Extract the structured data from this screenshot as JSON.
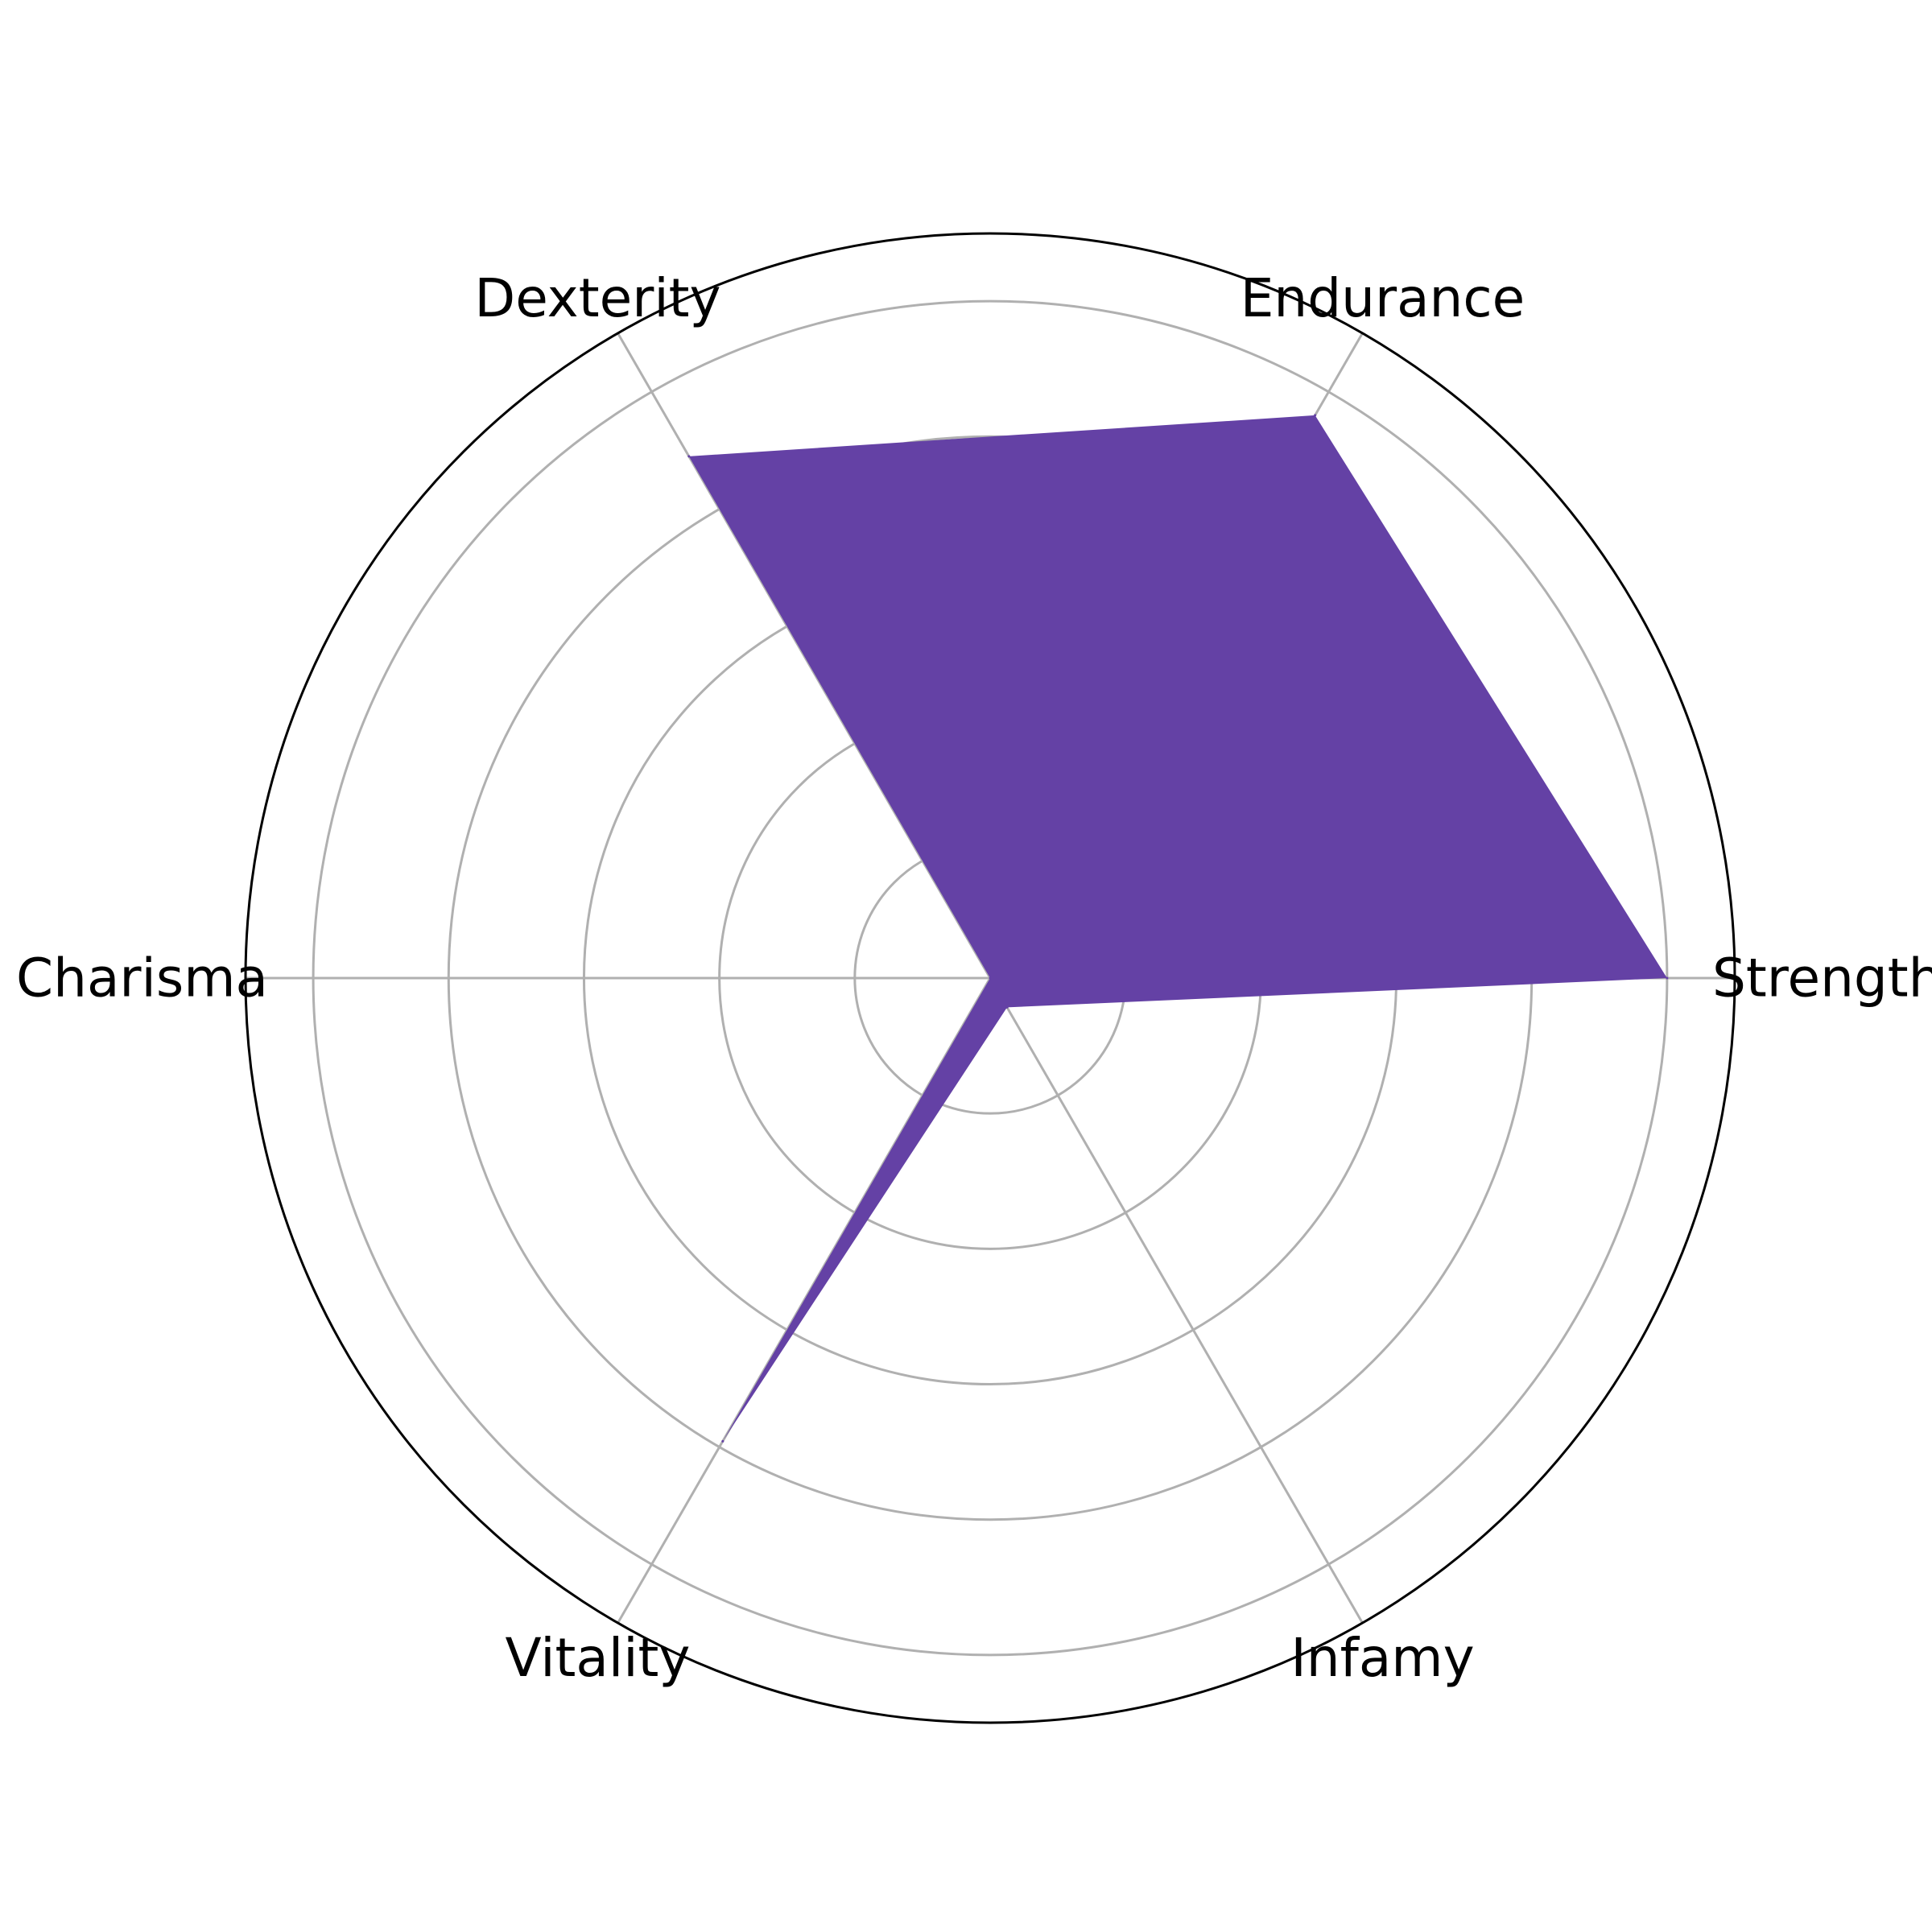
{
  "chart_data": {
    "type": "radar",
    "categories": [
      "Strength",
      "Endurance",
      "Dexterity",
      "Charisma",
      "Vitality",
      "Infamy"
    ],
    "series": [
      {
        "values": [
          1.0,
          0.96,
          0.89,
          0.0,
          0.79,
          0.05
        ],
        "color": "#6441a5"
      }
    ],
    "rlim": [
      0,
      1.1
    ],
    "grid_rings": [
      0.2,
      0.4,
      0.6,
      0.8,
      1.0
    ],
    "radial_tick_labels_visible": false,
    "grid": true,
    "legend": false,
    "title": ""
  }
}
